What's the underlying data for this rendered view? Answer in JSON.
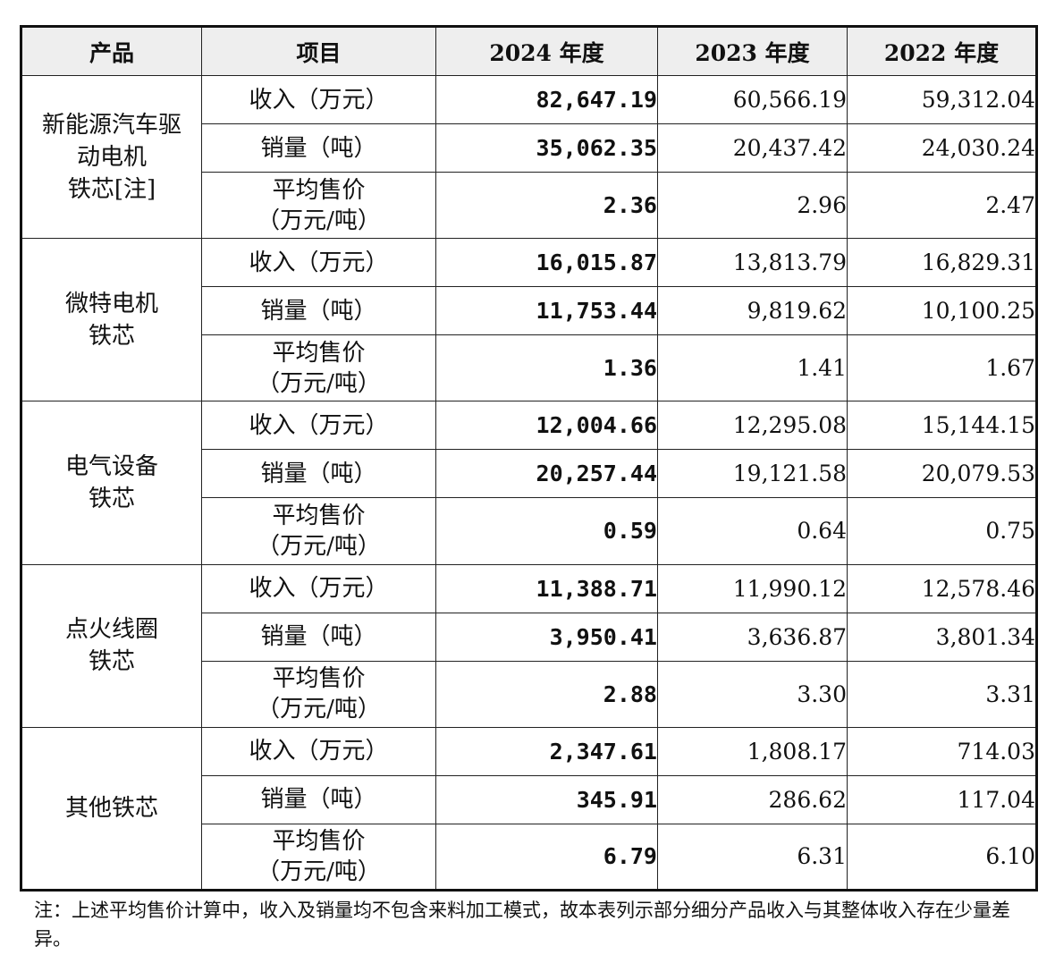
{
  "headers": [
    "产品",
    "项目",
    "2024 年度",
    "2023 年度",
    "2022 年度"
  ],
  "item_labels": {
    "revenue": "收入（万元）",
    "volume": "销量（吨）",
    "price_line1": "平均售价",
    "price_line2": "（万元/吨）"
  },
  "groups": [
    {
      "name_lines": [
        "新能源汽车驱",
        "动电机",
        "铁芯[注]"
      ],
      "revenue": [
        "82,647.19",
        "60,566.19",
        "59,312.04"
      ],
      "volume": [
        "35,062.35",
        "20,437.42",
        "24,030.24"
      ],
      "price": [
        "2.36",
        "2.96",
        "2.47"
      ]
    },
    {
      "name_lines": [
        "微特电机",
        "铁芯"
      ],
      "revenue": [
        "16,015.87",
        "13,813.79",
        "16,829.31"
      ],
      "volume": [
        "11,753.44",
        "9,819.62",
        "10,100.25"
      ],
      "price": [
        "1.36",
        "1.41",
        "1.67"
      ]
    },
    {
      "name_lines": [
        "电气设备",
        "铁芯"
      ],
      "revenue": [
        "12,004.66",
        "12,295.08",
        "15,144.15"
      ],
      "volume": [
        "20,257.44",
        "19,121.58",
        "20,079.53"
      ],
      "price": [
        "0.59",
        "0.64",
        "0.75"
      ]
    },
    {
      "name_lines": [
        "点火线圈",
        "铁芯"
      ],
      "revenue": [
        "11,388.71",
        "11,990.12",
        "12,578.46"
      ],
      "volume": [
        "3,950.41",
        "3,636.87",
        "3,801.34"
      ],
      "price": [
        "2.88",
        "3.30",
        "3.31"
      ]
    },
    {
      "name_lines": [
        "其他铁芯"
      ],
      "revenue": [
        "2,347.61",
        "1,808.17",
        "714.03"
      ],
      "volume": [
        "345.91",
        "286.62",
        "117.04"
      ],
      "price": [
        "6.79",
        "6.31",
        "6.10"
      ]
    }
  ],
  "note": "注：上述平均售价计算中，收入及销量均不包含来料加工模式，故本表列示部分细分产品收入与其整体收入存在少量差异。"
}
